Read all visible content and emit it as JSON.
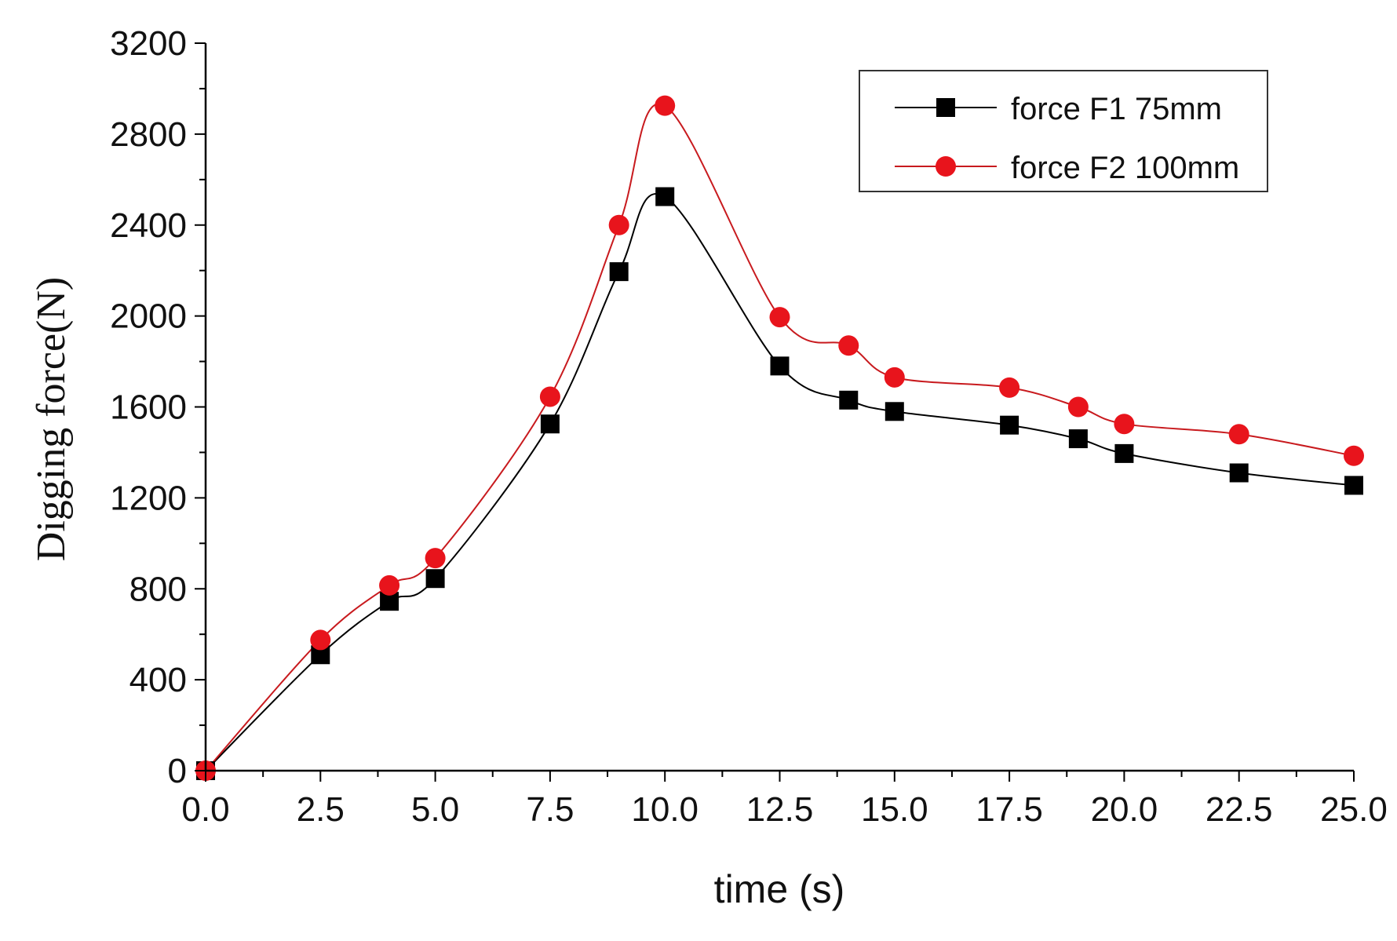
{
  "chart_data": {
    "type": "line",
    "title": "",
    "xlabel": "time (s)",
    "ylabel": "Digging force(N)",
    "xlim": [
      0,
      25
    ],
    "ylim": [
      0,
      3200
    ],
    "xticks": [
      0,
      2.5,
      5,
      7.5,
      10,
      12.5,
      15,
      17.5,
      20,
      22.5,
      25
    ],
    "xtick_labels": [
      "0.0",
      "2.5",
      "5.0",
      "7.5",
      "10.0",
      "12.5",
      "15.0",
      "17.5",
      "20.0",
      "22.5",
      "25.0"
    ],
    "yticks": [
      0,
      400,
      800,
      1200,
      1600,
      2000,
      2400,
      2800,
      3200
    ],
    "ytick_labels": [
      "0",
      "400",
      "800",
      "1200",
      "1600",
      "2000",
      "2400",
      "2800",
      "3200"
    ],
    "grid": false,
    "legend_position": "top-right",
    "series": [
      {
        "name": "force F1 75mm",
        "color": "#000000",
        "marker": "square",
        "x": [
          0,
          2.5,
          4,
          5,
          7.5,
          9,
          10,
          12.5,
          14,
          15,
          17.5,
          19,
          20,
          22.5,
          25
        ],
        "values": [
          0,
          510,
          745,
          845,
          1525,
          2195,
          2525,
          1780,
          1630,
          1580,
          1520,
          1460,
          1395,
          1310,
          1255
        ]
      },
      {
        "name": "force F2 100mm",
        "color": "#e8141c",
        "marker": "circle",
        "x": [
          0,
          2.5,
          4,
          5,
          7.5,
          9,
          10,
          12.5,
          14,
          15,
          17.5,
          19,
          20,
          22.5,
          25
        ],
        "values": [
          0,
          575,
          815,
          935,
          1645,
          2400,
          2925,
          1995,
          1870,
          1730,
          1685,
          1600,
          1525,
          1480,
          1385
        ]
      }
    ]
  }
}
